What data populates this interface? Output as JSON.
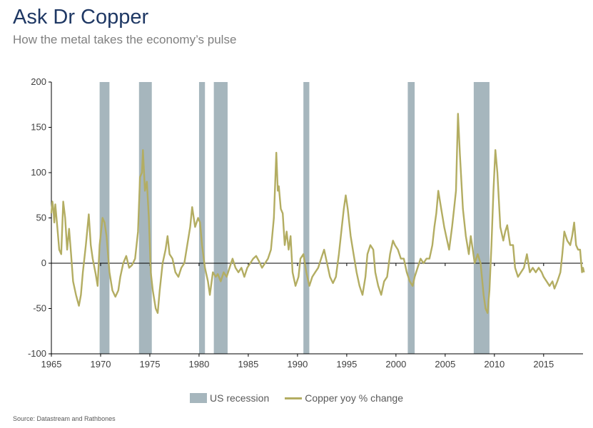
{
  "title": "Ask Dr Copper",
  "subtitle": "How the metal takes the economy’s pulse",
  "source": "Source: Datastream and Rathbones",
  "colors": {
    "title": "#1f3864",
    "recession": "#a6b6bd",
    "copper": "#b3ad62",
    "zero_line": "#000000"
  },
  "chart_data": {
    "type": "line",
    "x_range": [
      1965,
      2019
    ],
    "ylim": [
      -100,
      200
    ],
    "yticks": [
      200,
      150,
      100,
      50,
      0,
      -50,
      -100
    ],
    "xticks": [
      1965,
      1970,
      1975,
      1980,
      1985,
      1990,
      1995,
      2000,
      2005,
      2010,
      2015
    ],
    "grid": false,
    "legend_position": "bottom",
    "legend": [
      {
        "label": "US recession",
        "kind": "bar",
        "color": "#a6b6bd"
      },
      {
        "label": "Copper yoy % change",
        "kind": "line",
        "color": "#b3ad62"
      }
    ],
    "recessions": [
      [
        1969.9,
        1970.9
      ],
      [
        1973.9,
        1975.2
      ],
      [
        1980.0,
        1980.6
      ],
      [
        1981.5,
        1982.9
      ],
      [
        1990.6,
        1991.2
      ],
      [
        2001.2,
        2001.9
      ],
      [
        2007.9,
        2009.5
      ]
    ],
    "series": [
      {
        "name": "Copper yoy % change",
        "color": "#b3ad62",
        "points": [
          [
            1965.0,
            55
          ],
          [
            1965.1,
            68
          ],
          [
            1965.2,
            60
          ],
          [
            1965.3,
            45
          ],
          [
            1965.4,
            65
          ],
          [
            1965.6,
            40
          ],
          [
            1965.8,
            15
          ],
          [
            1966.0,
            10
          ],
          [
            1966.2,
            68
          ],
          [
            1966.4,
            50
          ],
          [
            1966.6,
            15
          ],
          [
            1966.8,
            38
          ],
          [
            1967.0,
            10
          ],
          [
            1967.2,
            -20
          ],
          [
            1967.5,
            -35
          ],
          [
            1967.8,
            -47
          ],
          [
            1968.0,
            -35
          ],
          [
            1968.2,
            -10
          ],
          [
            1968.5,
            20
          ],
          [
            1968.8,
            54
          ],
          [
            1969.0,
            20
          ],
          [
            1969.2,
            5
          ],
          [
            1969.5,
            -12
          ],
          [
            1969.7,
            -25
          ],
          [
            1969.9,
            20
          ],
          [
            1970.2,
            50
          ],
          [
            1970.4,
            45
          ],
          [
            1970.6,
            30
          ],
          [
            1970.9,
            -10
          ],
          [
            1971.2,
            -30
          ],
          [
            1971.5,
            -37
          ],
          [
            1971.8,
            -30
          ],
          [
            1972.0,
            -15
          ],
          [
            1972.3,
            0
          ],
          [
            1972.6,
            8
          ],
          [
            1972.9,
            -5
          ],
          [
            1973.2,
            -2
          ],
          [
            1973.5,
            5
          ],
          [
            1973.8,
            35
          ],
          [
            1974.0,
            95
          ],
          [
            1974.2,
            100
          ],
          [
            1974.3,
            125
          ],
          [
            1974.5,
            80
          ],
          [
            1974.7,
            90
          ],
          [
            1974.9,
            50
          ],
          [
            1975.1,
            -10
          ],
          [
            1975.3,
            -30
          ],
          [
            1975.6,
            -50
          ],
          [
            1975.8,
            -55
          ],
          [
            1976.0,
            -30
          ],
          [
            1976.3,
            0
          ],
          [
            1976.6,
            15
          ],
          [
            1976.8,
            30
          ],
          [
            1977.0,
            10
          ],
          [
            1977.3,
            5
          ],
          [
            1977.6,
            -10
          ],
          [
            1977.9,
            -15
          ],
          [
            1978.2,
            -5
          ],
          [
            1978.5,
            0
          ],
          [
            1978.8,
            20
          ],
          [
            1979.1,
            40
          ],
          [
            1979.3,
            62
          ],
          [
            1979.6,
            40
          ],
          [
            1979.9,
            50
          ],
          [
            1980.1,
            45
          ],
          [
            1980.3,
            20
          ],
          [
            1980.6,
            -5
          ],
          [
            1980.9,
            -20
          ],
          [
            1981.1,
            -35
          ],
          [
            1981.4,
            -10
          ],
          [
            1981.7,
            -15
          ],
          [
            1981.9,
            -12
          ],
          [
            1982.2,
            -20
          ],
          [
            1982.5,
            -10
          ],
          [
            1982.8,
            -15
          ],
          [
            1983.1,
            -5
          ],
          [
            1983.4,
            5
          ],
          [
            1983.7,
            -5
          ],
          [
            1984.0,
            -10
          ],
          [
            1984.3,
            -5
          ],
          [
            1984.6,
            -15
          ],
          [
            1984.9,
            -5
          ],
          [
            1985.2,
            0
          ],
          [
            1985.5,
            5
          ],
          [
            1985.8,
            8
          ],
          [
            1986.1,
            2
          ],
          [
            1986.4,
            -5
          ],
          [
            1986.7,
            0
          ],
          [
            1987.0,
            5
          ],
          [
            1987.3,
            15
          ],
          [
            1987.6,
            50
          ],
          [
            1987.85,
            122
          ],
          [
            1988.0,
            80
          ],
          [
            1988.1,
            85
          ],
          [
            1988.3,
            60
          ],
          [
            1988.5,
            55
          ],
          [
            1988.7,
            20
          ],
          [
            1988.9,
            35
          ],
          [
            1989.1,
            15
          ],
          [
            1989.3,
            30
          ],
          [
            1989.5,
            -10
          ],
          [
            1989.8,
            -25
          ],
          [
            1990.1,
            -15
          ],
          [
            1990.3,
            5
          ],
          [
            1990.6,
            10
          ],
          [
            1990.9,
            -10
          ],
          [
            1991.2,
            -25
          ],
          [
            1991.5,
            -15
          ],
          [
            1991.8,
            -10
          ],
          [
            1992.1,
            -5
          ],
          [
            1992.4,
            5
          ],
          [
            1992.7,
            15
          ],
          [
            1993.0,
            0
          ],
          [
            1993.3,
            -15
          ],
          [
            1993.6,
            -22
          ],
          [
            1993.9,
            -15
          ],
          [
            1994.2,
            10
          ],
          [
            1994.5,
            40
          ],
          [
            1994.7,
            60
          ],
          [
            1994.9,
            75
          ],
          [
            1995.1,
            60
          ],
          [
            1995.4,
            30
          ],
          [
            1995.7,
            10
          ],
          [
            1996.0,
            -10
          ],
          [
            1996.3,
            -25
          ],
          [
            1996.6,
            -35
          ],
          [
            1996.9,
            -15
          ],
          [
            1997.1,
            10
          ],
          [
            1997.4,
            20
          ],
          [
            1997.7,
            15
          ],
          [
            1997.9,
            -10
          ],
          [
            1998.2,
            -25
          ],
          [
            1998.5,
            -35
          ],
          [
            1998.8,
            -20
          ],
          [
            1999.1,
            -15
          ],
          [
            1999.4,
            10
          ],
          [
            1999.7,
            25
          ],
          [
            1999.9,
            20
          ],
          [
            2000.2,
            15
          ],
          [
            2000.5,
            5
          ],
          [
            2000.8,
            5
          ],
          [
            2001.1,
            -10
          ],
          [
            2001.4,
            -20
          ],
          [
            2001.7,
            -25
          ],
          [
            2001.9,
            -15
          ],
          [
            2002.2,
            -5
          ],
          [
            2002.5,
            5
          ],
          [
            2002.8,
            0
          ],
          [
            2003.1,
            5
          ],
          [
            2003.4,
            5
          ],
          [
            2003.7,
            20
          ],
          [
            2003.9,
            40
          ],
          [
            2004.1,
            55
          ],
          [
            2004.3,
            80
          ],
          [
            2004.6,
            60
          ],
          [
            2004.9,
            40
          ],
          [
            2005.1,
            30
          ],
          [
            2005.4,
            15
          ],
          [
            2005.7,
            40
          ],
          [
            2005.9,
            60
          ],
          [
            2006.1,
            80
          ],
          [
            2006.3,
            165
          ],
          [
            2006.5,
            120
          ],
          [
            2006.8,
            60
          ],
          [
            2007.1,
            30
          ],
          [
            2007.4,
            10
          ],
          [
            2007.6,
            30
          ],
          [
            2007.8,
            15
          ],
          [
            2008.0,
            0
          ],
          [
            2008.3,
            10
          ],
          [
            2008.6,
            0
          ],
          [
            2008.9,
            -35
          ],
          [
            2009.1,
            -50
          ],
          [
            2009.3,
            -55
          ],
          [
            2009.5,
            -30
          ],
          [
            2009.7,
            20
          ],
          [
            2009.9,
            80
          ],
          [
            2010.1,
            125
          ],
          [
            2010.3,
            100
          ],
          [
            2010.6,
            40
          ],
          [
            2010.9,
            25
          ],
          [
            2011.1,
            35
          ],
          [
            2011.3,
            42
          ],
          [
            2011.6,
            20
          ],
          [
            2011.9,
            20
          ],
          [
            2012.1,
            -5
          ],
          [
            2012.4,
            -15
          ],
          [
            2012.7,
            -10
          ],
          [
            2013.0,
            -5
          ],
          [
            2013.3,
            10
          ],
          [
            2013.6,
            -10
          ],
          [
            2013.9,
            -5
          ],
          [
            2014.2,
            -10
          ],
          [
            2014.5,
            -5
          ],
          [
            2014.8,
            -10
          ],
          [
            2015.0,
            -15
          ],
          [
            2015.3,
            -20
          ],
          [
            2015.6,
            -25
          ],
          [
            2015.9,
            -20
          ],
          [
            2016.1,
            -28
          ],
          [
            2016.4,
            -20
          ],
          [
            2016.7,
            -10
          ],
          [
            2016.9,
            10
          ],
          [
            2017.1,
            35
          ],
          [
            2017.4,
            25
          ],
          [
            2017.7,
            20
          ],
          [
            2017.9,
            30
          ],
          [
            2018.1,
            45
          ],
          [
            2018.3,
            20
          ],
          [
            2018.5,
            15
          ],
          [
            2018.7,
            15
          ],
          [
            2018.9,
            -10
          ],
          [
            2019.0,
            -5
          ],
          [
            2019.1,
            -10
          ]
        ]
      }
    ]
  }
}
